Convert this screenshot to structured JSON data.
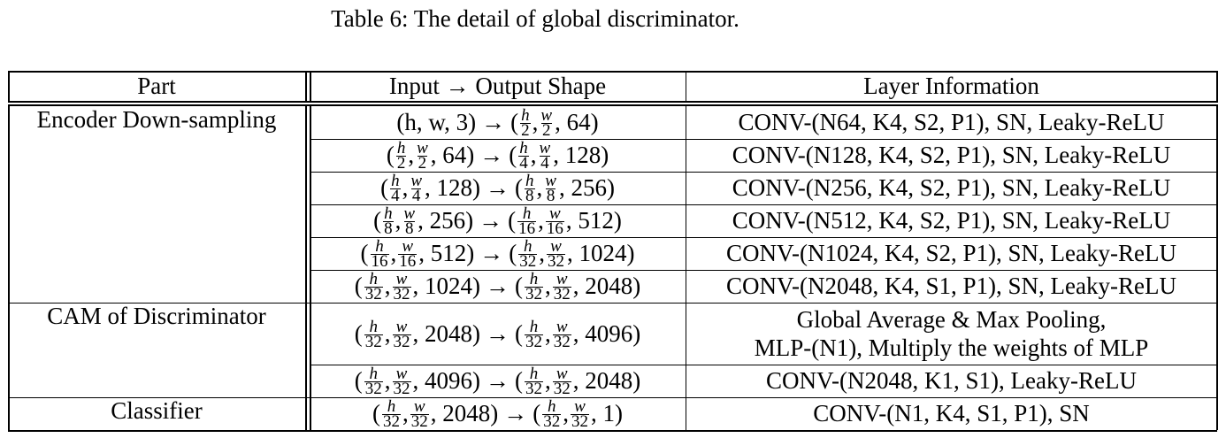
{
  "caption": "Table 6: The detail of global discriminator.",
  "table": {
    "headers": [
      "Part",
      "Input → Output Shape",
      "Layer Information"
    ],
    "groups": [
      {
        "part": "Encoder Down-sampling",
        "rows": [
          {
            "input": [
              "h",
              "w",
              "3"
            ],
            "input_plain": true,
            "output": [
              "h/2",
              "w/2",
              "64"
            ],
            "layer": "CONV-(N64, K4, S2, P1), SN, Leaky-ReLU"
          },
          {
            "input": [
              "h/2",
              "w/2",
              "64"
            ],
            "output": [
              "h/4",
              "w/4",
              "128"
            ],
            "layer": "CONV-(N128, K4, S2, P1), SN, Leaky-ReLU"
          },
          {
            "input": [
              "h/4",
              "w/4",
              "128"
            ],
            "output": [
              "h/8",
              "w/8",
              "256"
            ],
            "layer": "CONV-(N256, K4, S2, P1), SN, Leaky-ReLU"
          },
          {
            "input": [
              "h/8",
              "w/8",
              "256"
            ],
            "output": [
              "h/16",
              "w/16",
              "512"
            ],
            "layer": "CONV-(N512, K4, S2, P1), SN, Leaky-ReLU"
          },
          {
            "input": [
              "h/16",
              "w/16",
              "512"
            ],
            "output": [
              "h/32",
              "w/32",
              "1024"
            ],
            "layer": "CONV-(N1024, K4, S2, P1), SN, Leaky-ReLU"
          },
          {
            "input": [
              "h/32",
              "w/32",
              "1024"
            ],
            "output": [
              "h/32",
              "w/32",
              "2048"
            ],
            "layer": "CONV-(N2048, K4, S1, P1), SN, Leaky-ReLU"
          }
        ]
      },
      {
        "part": "CAM of Discriminator",
        "rows": [
          {
            "input": [
              "h/32",
              "w/32",
              "2048"
            ],
            "output": [
              "h/32",
              "w/32",
              "4096"
            ],
            "layer_lines": [
              "Global Average & Max Pooling,",
              "MLP-(N1), Multiply the weights of MLP"
            ]
          },
          {
            "input": [
              "h/32",
              "w/32",
              "4096"
            ],
            "output": [
              "h/32",
              "w/32",
              "2048"
            ],
            "layer": "CONV-(N2048, K1, S1), Leaky-ReLU"
          }
        ]
      },
      {
        "part": "Classifier",
        "rows": [
          {
            "input": [
              "h/32",
              "w/32",
              "2048"
            ],
            "output": [
              "h/32",
              "w/32",
              "1"
            ],
            "layer": "CONV-(N1, K4, S1, P1), SN"
          }
        ]
      }
    ]
  },
  "symbols": {
    "arrow": "→",
    "open": "(",
    "close": ")",
    "comma": ", "
  }
}
